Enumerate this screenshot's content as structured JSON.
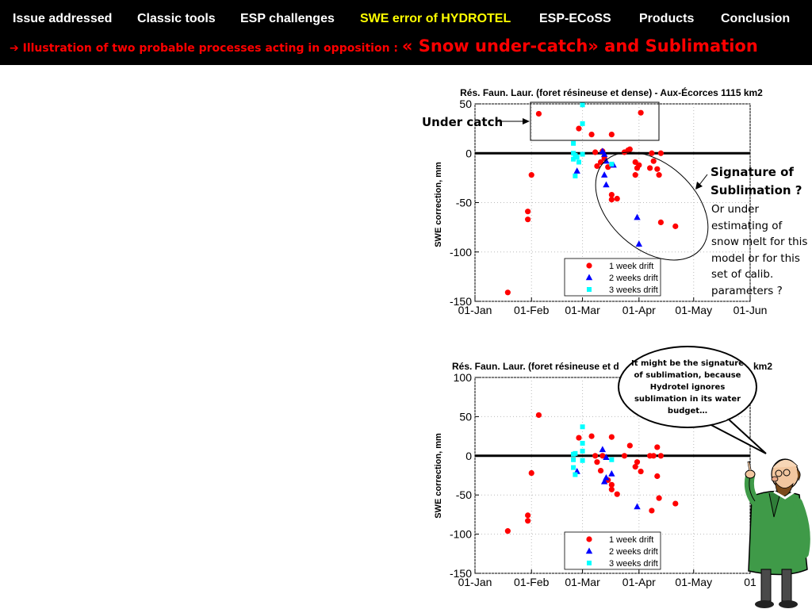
{
  "nav": {
    "items": [
      "Issue addressed",
      "Classic tools",
      "ESP challenges",
      "SWE error of HYDROTEL",
      "ESP-ECoSS",
      "Products",
      "Conclusion"
    ],
    "active": "SWE error of HYDROTEL"
  },
  "subtitle": {
    "arrow": "➔",
    "prefix": "Illustration of two probable processes acting in opposition : ",
    "big": "« Snow under-catch»   and   Sublimation"
  },
  "annotations": {
    "under_catch": "Under catch",
    "sublimation_title": "Signature of Sublimation ?",
    "sublimation_desc": "Or under estimating of snow melt for this model or for this set of calib. parameters ?",
    "bubble": "It might be the signature of sublimation, because Hydrotel ignores sublimation in its water budget…"
  },
  "colors": {
    "nav_active": "#ffff00",
    "subtitle": "#ff0000",
    "series_1week": "#ff0000",
    "series_2weeks": "#0000ff",
    "series_3weeks": "#00ffff"
  },
  "icons": {
    "professor": "cartoon-professor-icon"
  },
  "chart_data": [
    {
      "type": "scatter",
      "title": "Rés. Faun. Laur. (foret résineuse et dense) - Aux-Écorces 1115 km2",
      "xlabel": "",
      "ylabel": "SWE correction, mm",
      "x_ticks": [
        "01-Jan",
        "01-Feb",
        "01-Mar",
        "01-Apr",
        "01-May",
        "01-Jun"
      ],
      "x_tick_days": [
        0,
        31,
        59,
        90,
        120,
        151
      ],
      "xlim_days": [
        0,
        151
      ],
      "ylim": [
        -150,
        50
      ],
      "y_ticks": [
        50,
        0,
        -50,
        -100,
        -150
      ],
      "zero_line": true,
      "legend_position": "bottom-right",
      "series": [
        {
          "name": "1 week drift",
          "marker": "circle",
          "points": [
            [
              "19-Jan",
              -141
            ],
            [
              "05-Feb",
              40
            ],
            [
              "01-Feb",
              -22
            ],
            [
              "30-Jan",
              -59
            ],
            [
              "30-Jan",
              -67
            ],
            [
              "27-Feb",
              25
            ],
            [
              "06-Mar",
              19
            ],
            [
              "08-Mar",
              1
            ],
            [
              "09-Mar",
              -13
            ],
            [
              "11-Mar",
              -9
            ],
            [
              "12-Mar",
              2
            ],
            [
              "13-Mar",
              -5
            ],
            [
              "15-Mar",
              -14
            ],
            [
              "17-Mar",
              19
            ],
            [
              "17-Mar",
              -42
            ],
            [
              "17-Mar",
              -47
            ],
            [
              "20-Mar",
              -46
            ],
            [
              "24-Mar",
              1
            ],
            [
              "26-Mar",
              3
            ],
            [
              "27-Mar",
              4
            ],
            [
              "30-Mar",
              -9
            ],
            [
              "30-Mar",
              -22
            ],
            [
              "31-Mar",
              -15
            ],
            [
              "01-Apr",
              -12
            ],
            [
              "02-Apr",
              41
            ],
            [
              "07-Apr",
              -15
            ],
            [
              "08-Apr",
              0
            ],
            [
              "09-Apr",
              -8
            ],
            [
              "12-Apr",
              -22
            ],
            [
              "11-Apr",
              -16
            ],
            [
              "13-Apr",
              0
            ],
            [
              "13-Apr",
              -70
            ],
            [
              "21-Apr",
              -74
            ]
          ]
        },
        {
          "name": "2 weeks drift",
          "marker": "triangle",
          "points": [
            [
              "26-Feb",
              -18
            ],
            [
              "12-Mar",
              2
            ],
            [
              "13-Mar",
              -1
            ],
            [
              "13-Mar",
              -22
            ],
            [
              "14-Mar",
              -8
            ],
            [
              "14-Mar",
              -32
            ],
            [
              "18-Mar",
              -12
            ],
            [
              "31-Mar",
              -65
            ],
            [
              "01-Apr",
              -92
            ]
          ]
        },
        {
          "name": "3 weeks drift",
          "marker": "square",
          "points": [
            [
              "24-Feb",
              10
            ],
            [
              "24-Feb",
              0
            ],
            [
              "24-Feb",
              -6
            ],
            [
              "25-Feb",
              -23
            ],
            [
              "25-Feb",
              -2
            ],
            [
              "26-Feb",
              -4
            ],
            [
              "27-Feb",
              -9
            ],
            [
              "01-Mar",
              49
            ],
            [
              "01-Mar",
              30
            ],
            [
              "01-Mar",
              -1
            ],
            [
              "17-Mar",
              -11
            ]
          ]
        }
      ]
    },
    {
      "type": "scatter",
      "title": "Rés. Faun. Laur. (foret résineuse et d",
      "title_tail": "km2",
      "xlabel": "",
      "ylabel": "SWE correction, mm",
      "x_ticks": [
        "01-Jan",
        "01-Feb",
        "01-Mar",
        "01-Apr",
        "01-May",
        "01"
      ],
      "x_tick_days": [
        0,
        31,
        59,
        90,
        120,
        151
      ],
      "xlim_days": [
        0,
        151
      ],
      "ylim": [
        -150,
        100
      ],
      "y_ticks": [
        100,
        50,
        0,
        -50,
        -100,
        -150
      ],
      "zero_line": true,
      "legend_position": "bottom-right",
      "series": [
        {
          "name": "1 week drift",
          "marker": "circle",
          "points": [
            [
              "19-Jan",
              -96
            ],
            [
              "05-Feb",
              52
            ],
            [
              "01-Feb",
              -22
            ],
            [
              "30-Jan",
              -76
            ],
            [
              "30-Jan",
              -83
            ],
            [
              "27-Feb",
              23
            ],
            [
              "06-Mar",
              25
            ],
            [
              "08-Mar",
              0
            ],
            [
              "09-Mar",
              -8
            ],
            [
              "11-Mar",
              -19
            ],
            [
              "12-Mar",
              0
            ],
            [
              "15-Mar",
              -31
            ],
            [
              "17-Mar",
              24
            ],
            [
              "17-Mar",
              -37
            ],
            [
              "17-Mar",
              -43
            ],
            [
              "20-Mar",
              -49
            ],
            [
              "24-Mar",
              0
            ],
            [
              "27-Mar",
              13
            ],
            [
              "30-Mar",
              -14
            ],
            [
              "31-Mar",
              -8
            ],
            [
              "02-Apr",
              -20
            ],
            [
              "07-Apr",
              0
            ],
            [
              "08-Apr",
              -70
            ],
            [
              "09-Apr",
              0
            ],
            [
              "11-Apr",
              11
            ],
            [
              "11-Apr",
              -26
            ],
            [
              "12-Apr",
              -54
            ],
            [
              "13-Apr",
              0
            ],
            [
              "21-Apr",
              -61
            ]
          ]
        },
        {
          "name": "2 weeks drift",
          "marker": "triangle",
          "points": [
            [
              "26-Feb",
              -20
            ],
            [
              "12-Mar",
              8
            ],
            [
              "13-Mar",
              -33
            ],
            [
              "14-Mar",
              -2
            ],
            [
              "14-Mar",
              -28
            ],
            [
              "17-Mar",
              -23
            ],
            [
              "31-Mar",
              -65
            ]
          ]
        },
        {
          "name": "3 weeks drift",
          "marker": "square",
          "points": [
            [
              "24-Feb",
              2
            ],
            [
              "24-Feb",
              -5
            ],
            [
              "24-Feb",
              -15
            ],
            [
              "25-Feb",
              3
            ],
            [
              "25-Feb",
              -24
            ],
            [
              "01-Mar",
              37
            ],
            [
              "01-Mar",
              16
            ],
            [
              "01-Mar",
              6
            ],
            [
              "01-Mar",
              -6
            ],
            [
              "17-Mar",
              -5
            ]
          ]
        }
      ]
    }
  ]
}
